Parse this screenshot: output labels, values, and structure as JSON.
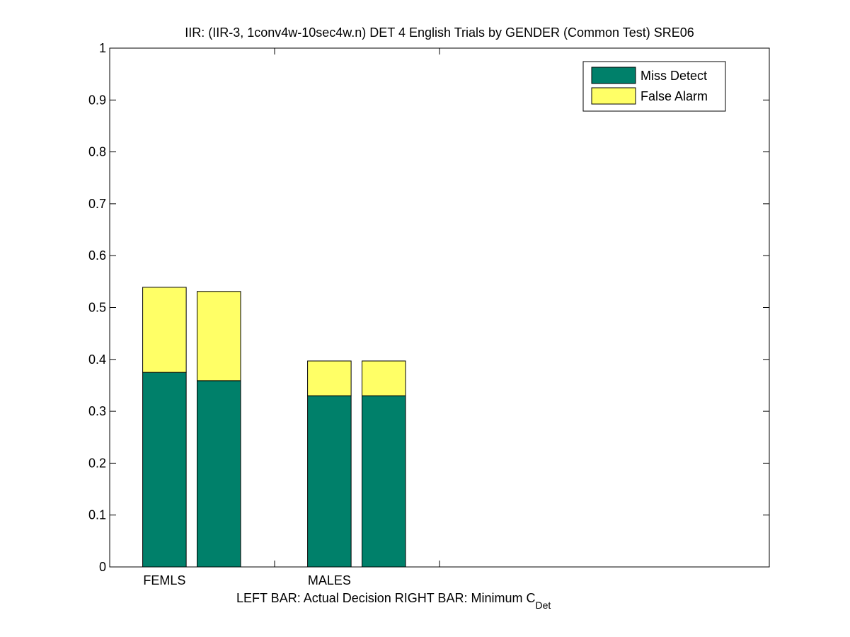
{
  "chart_data": {
    "type": "bar",
    "stacked": true,
    "title": "IIR: (IIR-3, 1conv4w-10sec4w.n) DET 4 English Trials by GENDER (Common Test) SRE06",
    "xlabel_main": "LEFT BAR: Actual Decision     RIGHT BAR: Minimum C",
    "xlabel_sub": "Det",
    "categories": [
      "FEMLS",
      "MALES"
    ],
    "bars_per_category": [
      "Actual Decision",
      "Minimum C_Det"
    ],
    "series": [
      {
        "name": "Miss Detect",
        "color": "#00806a",
        "values": [
          [
            0.375,
            0.359
          ],
          [
            0.33,
            0.33
          ]
        ]
      },
      {
        "name": "False Alarm",
        "color": "#ffff66",
        "values": [
          [
            0.164,
            0.172
          ],
          [
            0.067,
            0.067
          ]
        ]
      }
    ],
    "ylim": [
      0,
      1
    ],
    "yticks": [
      "0",
      "0.1",
      "0.2",
      "0.3",
      "0.4",
      "0.5",
      "0.6",
      "0.7",
      "0.8",
      "0.9",
      "1"
    ],
    "grid": false,
    "legend_position": "top-right"
  }
}
